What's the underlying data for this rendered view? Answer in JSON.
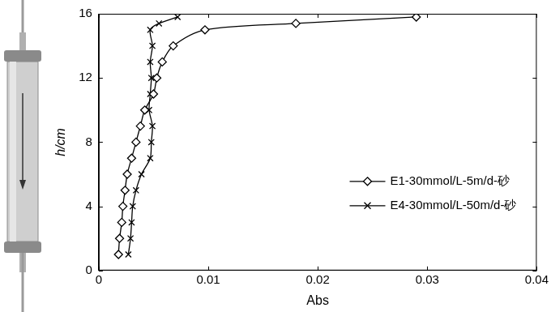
{
  "chart_data": {
    "type": "line",
    "x_label": "Abs",
    "y_label": "h/cm",
    "series": [
      {
        "name": "E1-30mmol/L-5m/d-砂",
        "color": "#000000",
        "marker": "diamond",
        "line_style": "solid",
        "x": [
          0.0018,
          0.0019,
          0.0021,
          0.0022,
          0.0024,
          0.0026,
          0.003,
          0.0034,
          0.0038,
          0.0042,
          0.005,
          0.0053,
          0.0058,
          0.0068,
          0.0097,
          0.018,
          0.029
        ],
        "values": [
          1,
          2,
          3,
          4,
          5,
          6,
          7,
          8,
          9,
          10,
          11,
          12,
          13,
          14,
          15,
          15.4,
          15.8
        ]
      },
      {
        "name": "E4-30mmol/L-50m/d-砂",
        "color": "#000000",
        "marker": "cross",
        "line_style": "solid",
        "x": [
          0.0027,
          0.0029,
          0.003,
          0.0031,
          0.0034,
          0.0039,
          0.0047,
          0.0048,
          0.0049,
          0.0046,
          0.0047,
          0.0048,
          0.0047,
          0.0049,
          0.0047,
          0.0055,
          0.0072
        ],
        "values": [
          1,
          2,
          3,
          4,
          5,
          6,
          7,
          8,
          9,
          10,
          11,
          12,
          13,
          14,
          15,
          15.4,
          15.8
        ]
      }
    ],
    "xlim": [
      0,
      0.04
    ],
    "xticks": [
      0,
      0.01,
      0.02,
      0.03,
      0.04
    ],
    "ylim": [
      0,
      16
    ],
    "yticks": [
      0,
      4,
      8,
      12,
      16
    ],
    "grid": false,
    "legend": "lower right"
  }
}
